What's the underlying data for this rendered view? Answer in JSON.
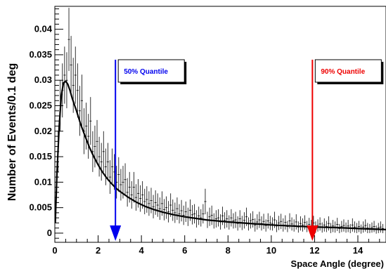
{
  "chart_data": {
    "type": "scatter",
    "title": "",
    "xlabel": "Space Angle (degree)",
    "ylabel": "Number of Events/0.1 deg",
    "xlim": [
      0,
      15.3
    ],
    "ylim": [
      -0.0018,
      0.0445
    ],
    "x_ticks": [
      0,
      2,
      4,
      6,
      8,
      10,
      12,
      14
    ],
    "x_tick_labels": [
      "0",
      "2",
      "4",
      "6",
      "8",
      "10",
      "12",
      "14"
    ],
    "y_ticks": [
      0,
      0.005,
      0.01,
      0.015,
      0.02,
      0.025,
      0.03,
      0.035,
      0.04
    ],
    "y_tick_labels": [
      "0",
      "0.005",
      "0.01",
      "0.015",
      "0.02",
      "0.025",
      "0.03",
      "0.035",
      "0.04"
    ],
    "grid": false,
    "series": [
      {
        "kind": "histogram-points-with-error-bars",
        "x": [
          0.05,
          0.15,
          0.25,
          0.35,
          0.45,
          0.55,
          0.65,
          0.75,
          0.85,
          0.95,
          1.05,
          1.15,
          1.25,
          1.35,
          1.45,
          1.55,
          1.65,
          1.75,
          1.85,
          1.95,
          2.05,
          2.15,
          2.25,
          2.35,
          2.45,
          2.55,
          2.65,
          2.75,
          2.85,
          2.95,
          3.05,
          3.15,
          3.25,
          3.35,
          3.45,
          3.55,
          3.65,
          3.75,
          3.85,
          3.95,
          4.05,
          4.15,
          4.25,
          4.35,
          4.45,
          4.55,
          4.65,
          4.75,
          4.85,
          4.95,
          5.05,
          5.15,
          5.25,
          5.35,
          5.45,
          5.55,
          5.65,
          5.75,
          5.85,
          5.95,
          6.05,
          6.15,
          6.25,
          6.35,
          6.45,
          6.55,
          6.65,
          6.75,
          6.85,
          6.95,
          7.05,
          7.15,
          7.25,
          7.35,
          7.45,
          7.55,
          7.65,
          7.75,
          7.85,
          7.95,
          8.05,
          8.15,
          8.25,
          8.35,
          8.45,
          8.55,
          8.65,
          8.75,
          8.85,
          8.95,
          9.05,
          9.15,
          9.25,
          9.35,
          9.45,
          9.55,
          9.65,
          9.75,
          9.85,
          9.95,
          10.05,
          10.15,
          10.25,
          10.35,
          10.45,
          10.55,
          10.65,
          10.75,
          10.85,
          10.95,
          11.05,
          11.15,
          11.25,
          11.35,
          11.45,
          11.55,
          11.65,
          11.75,
          11.85,
          11.95,
          12.05,
          12.15,
          12.25,
          12.35,
          12.45,
          12.55,
          12.65,
          12.75,
          12.85,
          12.95,
          13.05,
          13.15,
          13.25,
          13.35,
          13.45,
          13.55,
          13.65,
          13.75,
          13.85,
          13.95,
          14.05,
          14.15,
          14.25,
          14.35,
          14.45,
          14.55,
          14.65,
          14.75,
          14.85,
          14.95,
          15.05,
          15.15
        ],
        "y": [
          0.006,
          0.016,
          0.025,
          0.028,
          0.031,
          0.03,
          0.038,
          0.033,
          0.029,
          0.031,
          0.028,
          0.024,
          0.026,
          0.02,
          0.021,
          0.019,
          0.022,
          0.016,
          0.017,
          0.018,
          0.015,
          0.014,
          0.016,
          0.013,
          0.014,
          0.011,
          0.013,
          0.012,
          0.01,
          0.0115,
          0.0095,
          0.01,
          0.0105,
          0.008,
          0.009,
          0.0075,
          0.009,
          0.007,
          0.0078,
          0.0068,
          0.0075,
          0.0062,
          0.0066,
          0.0058,
          0.0064,
          0.0052,
          0.006,
          0.0055,
          0.0048,
          0.0058,
          0.0046,
          0.005,
          0.0042,
          0.0055,
          0.0045,
          0.004,
          0.0048,
          0.0038,
          0.0044,
          0.0035,
          0.0042,
          0.0032,
          0.0045,
          0.0036,
          0.0038,
          0.0028,
          0.0034,
          0.003,
          0.0038,
          0.0062,
          0.0026,
          0.0032,
          0.0035,
          0.0024,
          0.0028,
          0.003,
          0.0022,
          0.0034,
          0.0025,
          0.0028,
          0.0021,
          0.003,
          0.0024,
          0.0026,
          0.0019,
          0.0028,
          0.002,
          0.0025,
          0.0032,
          0.0018,
          0.0024,
          0.0027,
          0.0016,
          0.0022,
          0.0026,
          0.0019,
          0.0023,
          0.0015,
          0.0024,
          0.002,
          0.0018,
          0.0026,
          0.0014,
          0.002,
          0.0023,
          0.0016,
          0.0021,
          0.0013,
          0.0024,
          0.0018,
          0.0015,
          0.0022,
          0.0012,
          0.0019,
          0.0016,
          0.0021,
          0.0013,
          0.0017,
          0.0014,
          0.002,
          0.0012,
          0.0015,
          0.0018,
          0.0011,
          0.0016,
          0.0013,
          0.0019,
          0.001,
          0.0014,
          0.0012,
          0.0017,
          0.0009,
          0.0013,
          0.0015,
          0.0011,
          0.0014,
          0.0009,
          0.0016,
          0.0012,
          0.001,
          0.0013,
          0.0008,
          0.0012,
          0.0015,
          0.001,
          0.0009,
          0.0011,
          0.0013,
          0.0007,
          0.001,
          0.0012,
          0.0009
        ],
        "yerr": [
          0.0024,
          0.004,
          0.005,
          0.0053,
          0.0056,
          0.0055,
          0.0062,
          0.0057,
          0.0054,
          0.0056,
          0.0053,
          0.0049,
          0.0051,
          0.0045,
          0.0046,
          0.0044,
          0.0047,
          0.004,
          0.0041,
          0.0042,
          0.0039,
          0.0037,
          0.004,
          0.0036,
          0.0037,
          0.0033,
          0.0036,
          0.0035,
          0.0032,
          0.0034,
          0.0031,
          0.0032,
          0.0032,
          0.0028,
          0.003,
          0.0027,
          0.003,
          0.0026,
          0.0028,
          0.0026,
          0.0027,
          0.0025,
          0.0026,
          0.0024,
          0.0025,
          0.0023,
          0.0024,
          0.0023,
          0.0022,
          0.0024,
          0.0021,
          0.0022,
          0.0021,
          0.0023,
          0.0021,
          0.002,
          0.0022,
          0.0019,
          0.0021,
          0.0019,
          0.002,
          0.0018,
          0.0021,
          0.0019,
          0.0019,
          0.0017,
          0.0018,
          0.0017,
          0.0019,
          0.0025,
          0.0016,
          0.0018,
          0.0019,
          0.0015,
          0.0017,
          0.0017,
          0.0015,
          0.0018,
          0.0016,
          0.0017,
          0.0014,
          0.0017,
          0.0015,
          0.0016,
          0.0014,
          0.0017,
          0.0014,
          0.0016,
          0.0018,
          0.0013,
          0.0015,
          0.0016,
          0.0013,
          0.0015,
          0.0016,
          0.0014,
          0.0015,
          0.0012,
          0.0015,
          0.0014,
          0.0013,
          0.0016,
          0.0012,
          0.0014,
          0.0015,
          0.0013,
          0.0014,
          0.0011,
          0.0015,
          0.0013,
          0.0012,
          0.0015,
          0.0011,
          0.0014,
          0.0013,
          0.0014,
          0.0011,
          0.0013,
          0.0012,
          0.0014,
          0.0011,
          0.0012,
          0.0013,
          0.001,
          0.0013,
          0.0011,
          0.0014,
          0.001,
          0.0012,
          0.0011,
          0.0013,
          0.0009,
          0.0011,
          0.0012,
          0.001,
          0.0012,
          0.0009,
          0.0013,
          0.0011,
          0.001,
          0.0011,
          0.0009,
          0.0011,
          0.0012,
          0.001,
          0.0009,
          0.001,
          0.0011,
          0.0008,
          0.001,
          0.0011,
          0.0009
        ],
        "color": "#000000"
      },
      {
        "kind": "fit-curve",
        "x": [
          0.02,
          0.1,
          0.2,
          0.3,
          0.4,
          0.5,
          0.6,
          0.7,
          0.8,
          1.0,
          1.2,
          1.4,
          1.6,
          1.8,
          2.0,
          2.2,
          2.4,
          2.6,
          2.8,
          3.0,
          3.4,
          3.8,
          4.2,
          4.6,
          5.0,
          5.5,
          6.0,
          6.5,
          7.0,
          7.5,
          8.0,
          9.0,
          10.0,
          11.0,
          12.0,
          13.0,
          14.0,
          15.3
        ],
        "y": [
          0.002,
          0.012,
          0.021,
          0.027,
          0.0295,
          0.0298,
          0.0292,
          0.028,
          0.0265,
          0.024,
          0.0213,
          0.019,
          0.0168,
          0.015,
          0.0134,
          0.012,
          0.0108,
          0.0098,
          0.0089,
          0.0082,
          0.007,
          0.006,
          0.0052,
          0.0046,
          0.0041,
          0.0036,
          0.0032,
          0.0029,
          0.0026,
          0.0024,
          0.0022,
          0.0019,
          0.0016,
          0.0014,
          0.0012,
          0.0011,
          0.0009,
          0.0007
        ],
        "color": "#000000"
      }
    ],
    "markers": [
      {
        "label": "50% Quantile",
        "x": 2.8,
        "color": "#0000ee"
      },
      {
        "label": "90% Quantile",
        "x": 11.9,
        "color": "#ee0000"
      }
    ]
  }
}
